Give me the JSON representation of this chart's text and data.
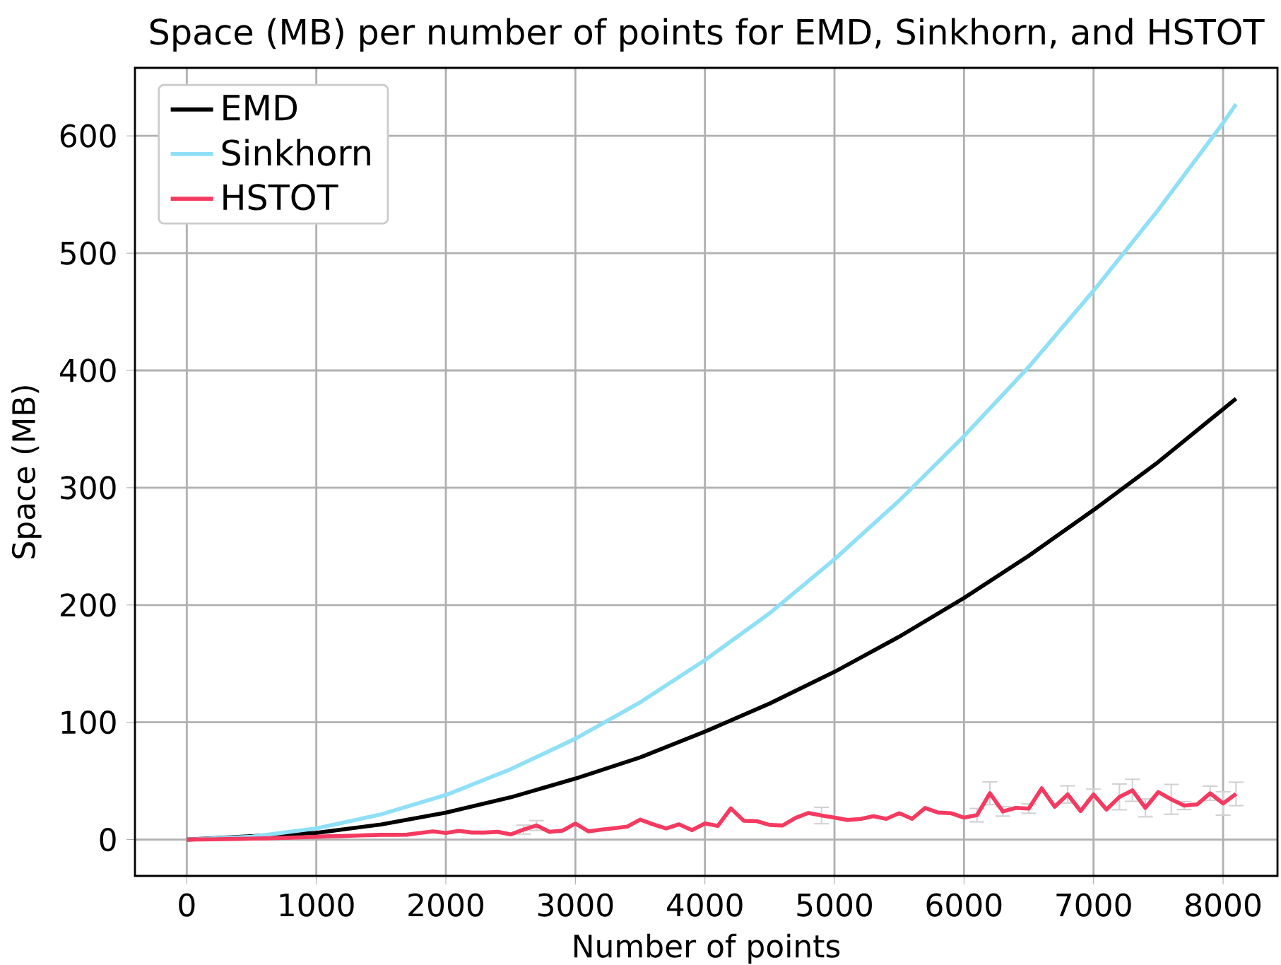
{
  "chart_data": {
    "type": "line",
    "title": "Space (MB) per number of points for EMD, Sinkhorn, and HSTOT",
    "xlabel": "Number of points",
    "ylabel": "Space (MB)",
    "xlim": [
      -400,
      8420
    ],
    "ylim": [
      -31,
      658
    ],
    "xticks": [
      0,
      1000,
      2000,
      3000,
      4000,
      5000,
      6000,
      7000,
      8000
    ],
    "yticks": [
      0,
      100,
      200,
      300,
      400,
      500,
      600
    ],
    "grid": true,
    "legend": "top left",
    "series": [
      {
        "name": "EMD",
        "color": "#000000",
        "x": [
          0,
          500,
          1000,
          1500,
          2000,
          2500,
          3000,
          3500,
          4000,
          4500,
          5000,
          5500,
          6000,
          6500,
          7000,
          7500,
          8000,
          8100
        ],
        "values": [
          0,
          null,
          5.7,
          12.9,
          23,
          36,
          52,
          70,
          92,
          116,
          143,
          173,
          206,
          242,
          281,
          322,
          367,
          376
        ]
      },
      {
        "name": "Sinkhorn",
        "color": "#8fe0f7",
        "x": [
          0,
          500,
          1000,
          1500,
          2000,
          2500,
          3000,
          3500,
          4000,
          4500,
          5000,
          5500,
          6000,
          6500,
          7000,
          7500,
          8000,
          8100
        ],
        "values": [
          0,
          2.4,
          9.5,
          21.5,
          38,
          60,
          86,
          117,
          153,
          193,
          239,
          289,
          344,
          403,
          468,
          537,
          611,
          627
        ]
      },
      {
        "name": "HSTOT",
        "color": "#f53a61",
        "x": [
          0,
          100,
          200,
          300,
          400,
          500,
          600,
          700,
          800,
          900,
          1000,
          1100,
          1200,
          1300,
          1400,
          1500,
          1600,
          1700,
          1800,
          1900,
          2000,
          2100,
          2200,
          2300,
          2400,
          2500,
          2600,
          2700,
          2800,
          2900,
          3000,
          3100,
          3200,
          3300,
          3400,
          3500,
          3600,
          3700,
          3800,
          3900,
          4000,
          4100,
          4200,
          4300,
          4400,
          4500,
          4600,
          4700,
          4800,
          4900,
          5000,
          5100,
          5200,
          5300,
          5400,
          5500,
          5600,
          5700,
          5800,
          5900,
          6000,
          6100,
          6200,
          6300,
          6400,
          6500,
          6600,
          6700,
          6800,
          6900,
          7000,
          7100,
          7200,
          7300,
          7400,
          7500,
          7600,
          7700,
          7800,
          7900,
          8000,
          8100
        ],
        "values": [
          0,
          0.1,
          0.2,
          0.4,
          0.6,
          0.8,
          1.0,
          1.3,
          1.6,
          2.0,
          2.4,
          2.8,
          3.0,
          3.4,
          3.7,
          4.0,
          4.0,
          4.2,
          5.6,
          7.0,
          5.6,
          7.4,
          6.0,
          6.0,
          6.6,
          4.4,
          8.5,
          12,
          6.6,
          7.6,
          13.7,
          7,
          8.5,
          9.7,
          11,
          17,
          13,
          9.5,
          13,
          8,
          13.7,
          11.7,
          26.6,
          16,
          15.7,
          12.5,
          12,
          18.5,
          22.7,
          20.5,
          18.7,
          16.7,
          17.5,
          20,
          17.7,
          22.5,
          17.7,
          27,
          23,
          22.5,
          18.7,
          20.8,
          39.5,
          24,
          27,
          26.4,
          43.7,
          28,
          38.5,
          24.3,
          38.5,
          25.6,
          36.4,
          42,
          27,
          40.5,
          34.3,
          29,
          30,
          39.5,
          30.8,
          38.9
        ],
        "errors": [
          null,
          null,
          null,
          null,
          null,
          null,
          null,
          null,
          null,
          null,
          null,
          null,
          null,
          null,
          null,
          null,
          null,
          null,
          null,
          null,
          null,
          null,
          null,
          null,
          null,
          null,
          3.8,
          4.2,
          null,
          null,
          null,
          null,
          null,
          null,
          null,
          null,
          null,
          null,
          null,
          null,
          null,
          null,
          null,
          null,
          null,
          null,
          null,
          null,
          null,
          7,
          null,
          null,
          null,
          null,
          null,
          null,
          null,
          null,
          null,
          null,
          null,
          5.7,
          9.7,
          4,
          null,
          4,
          null,
          null,
          7.3,
          null,
          4.5,
          null,
          11,
          9.4,
          7.6,
          null,
          12.7,
          3.4,
          null,
          6,
          10,
          10
        ]
      }
    ]
  }
}
